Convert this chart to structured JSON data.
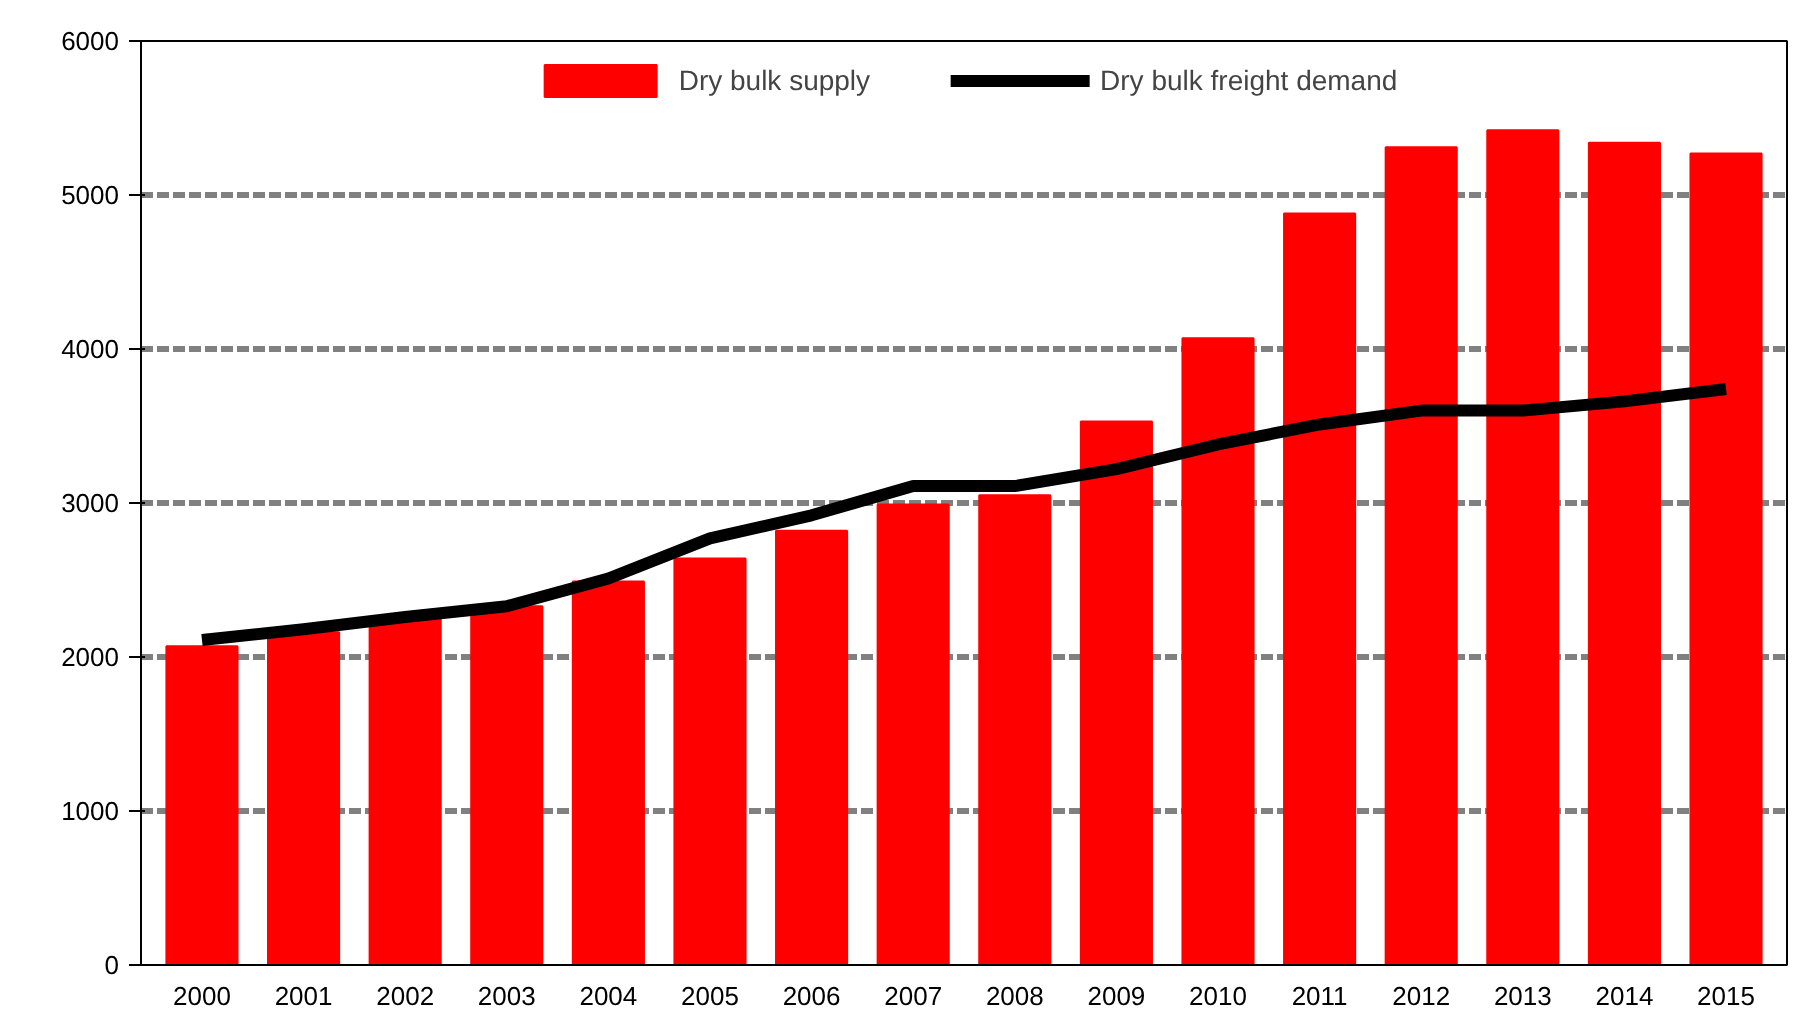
{
  "chart_data": {
    "type": "bar",
    "categories": [
      "2000",
      "2001",
      "2002",
      "2003",
      "2004",
      "2005",
      "2006",
      "2007",
      "2008",
      "2009",
      "2010",
      "2011",
      "2012",
      "2013",
      "2014",
      "2015"
    ],
    "series": [
      {
        "name": "Dry bulk supply",
        "color": "#ff0000",
        "values": [
          2070,
          2160,
          2250,
          2330,
          2490,
          2640,
          2820,
          2990,
          3050,
          3530,
          4070,
          4880,
          5310,
          5420,
          5340,
          5270
        ]
      },
      {
        "name": "Dry bulk freight demand",
        "type": "line",
        "color": "#000000",
        "values": [
          2110,
          2180,
          2260,
          2330,
          2510,
          2770,
          2920,
          3110,
          3110,
          3220,
          3380,
          3510,
          3600,
          3600,
          3660,
          3740
        ]
      }
    ],
    "ylim": [
      0,
      6000
    ],
    "yticks": [
      0,
      1000,
      2000,
      3000,
      4000,
      5000,
      6000
    ],
    "grid": "y",
    "legend": "top",
    "line_style": "solid"
  }
}
